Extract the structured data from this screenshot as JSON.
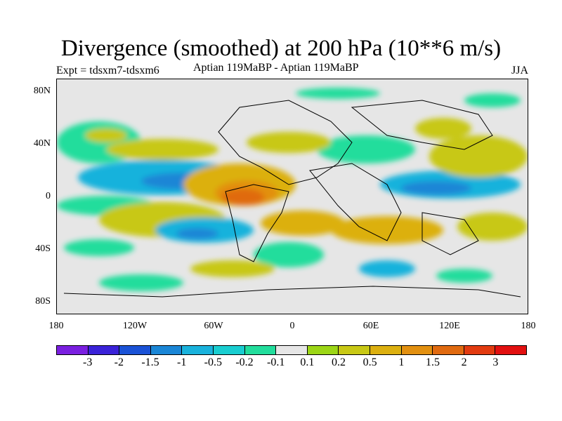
{
  "title": "Divergence (smoothed) at 200 hPa (10**6 m/s)",
  "experiment": "Expt = tdsxm7-tdsxm6",
  "center_label": "Aptian   119MaBP - Aptian   119MaBP",
  "season": "JJA",
  "lat_labels": [
    "80N",
    "40N",
    "0",
    "40S",
    "80S"
  ],
  "lon_labels": [
    "180",
    "120W",
    "60W",
    "0",
    "60E",
    "120E",
    "180"
  ],
  "colorbar": {
    "colors": [
      "#7a1fe0",
      "#3a22d8",
      "#1a52d6",
      "#1a86d6",
      "#19b2dc",
      "#19cdd0",
      "#22dd9c",
      "#e6e6e6",
      "#9cd616",
      "#c8c815",
      "#dcb010",
      "#e29010",
      "#e06a10",
      "#e23b10",
      "#e21010"
    ],
    "labels": [
      "-3",
      "-2",
      "-1.5",
      "-1",
      "-0.5",
      "-0.2",
      "-0.1",
      "0.1",
      "0.2",
      "0.5",
      "1",
      "1.5",
      "2",
      "3"
    ]
  },
  "map": {
    "ocean_color": "#e6e6e6",
    "lon_range": [
      -180,
      180
    ],
    "lat_range": [
      -90,
      90
    ]
  }
}
